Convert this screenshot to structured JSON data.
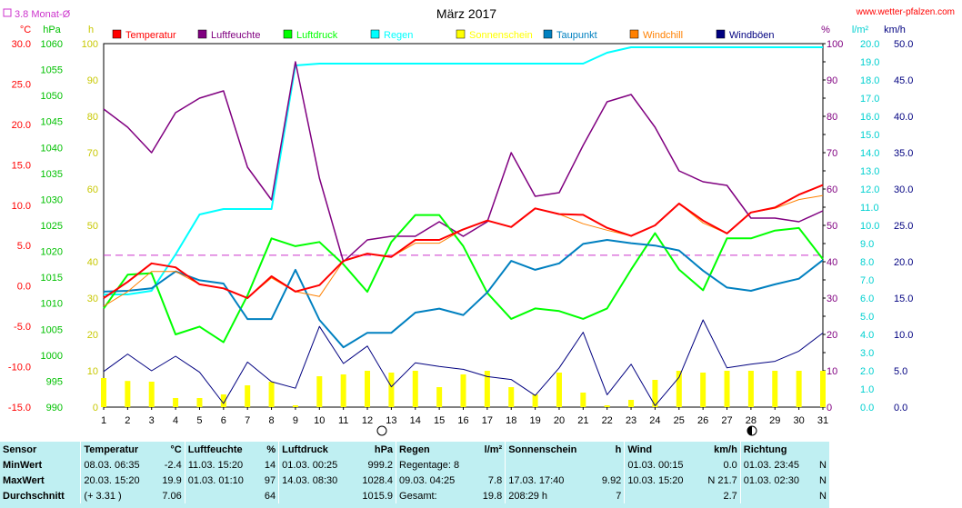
{
  "header": {
    "monat_label": "3.8 Monat-Ø",
    "title": "März 2017",
    "site": "www.wetter-pfalzen.com"
  },
  "colors": {
    "temperatur": "#ff0000",
    "luftfeuchte": "#800080",
    "luftdruck": "#00ff00",
    "regen": "#00ffff",
    "sonnenschein": "#ffff00",
    "taupunkt": "#0080c0",
    "windchill": "#ff8000",
    "windboeen": "#000080",
    "wind": "#000080",
    "monat_avg": "#cc33cc"
  },
  "chart_data": {
    "type": "line",
    "title": "März 2017",
    "x": [
      1,
      2,
      3,
      4,
      5,
      6,
      7,
      8,
      9,
      10,
      11,
      12,
      13,
      14,
      15,
      16,
      17,
      18,
      19,
      20,
      21,
      22,
      23,
      24,
      25,
      26,
      27,
      28,
      29,
      30,
      31
    ],
    "axes": {
      "temp": {
        "unit": "°C",
        "range": [
          -15,
          30
        ],
        "ticks": [
          "30.0",
          "25.0",
          "20.0",
          "15.0",
          "10.0",
          "5.0",
          "0.0",
          "-5.0",
          "-10.0",
          "-15.0"
        ]
      },
      "pressure": {
        "unit": "hPa",
        "range": [
          990,
          1060
        ],
        "ticks": [
          "1060",
          "1055",
          "1050",
          "1045",
          "1040",
          "1035",
          "1030",
          "1025",
          "1020",
          "1015",
          "1010",
          "1005",
          "1000",
          "995",
          "990"
        ]
      },
      "hours": {
        "unit": "h",
        "range": [
          0,
          100
        ],
        "ticks": [
          "100",
          "90",
          "80",
          "70",
          "60",
          "50",
          "40",
          "30",
          "20",
          "10",
          "0"
        ]
      },
      "humidity": {
        "unit": "%",
        "range": [
          0,
          100
        ],
        "ticks": [
          "100",
          "90",
          "80",
          "70",
          "60",
          "50",
          "40",
          "30",
          "20",
          "10",
          "0"
        ]
      },
      "rain": {
        "unit": "l/m²",
        "range": [
          0,
          20
        ],
        "ticks": [
          "20.0",
          "19.0",
          "18.0",
          "17.0",
          "16.0",
          "15.0",
          "14.0",
          "13.0",
          "12.0",
          "11.0",
          "10.0",
          "9.0",
          "8.0",
          "7.0",
          "6.0",
          "5.0",
          "4.0",
          "3.0",
          "2.0",
          "1.0",
          "0.0"
        ]
      },
      "wind": {
        "unit": "km/h",
        "range": [
          0,
          50
        ],
        "ticks": [
          "50.0",
          "45.0",
          "40.0",
          "35.0",
          "30.0",
          "25.0",
          "20.0",
          "15.0",
          "10.0",
          "5.0",
          "0.0"
        ]
      }
    },
    "monat_avg_temp": 3.8,
    "series": [
      {
        "name": "Temperatur",
        "axis": "temp",
        "values": [
          -1.5,
          0.5,
          2.8,
          2.3,
          0.2,
          -0.3,
          -1.5,
          1.2,
          -0.7,
          0.1,
          3.1,
          4.0,
          3.6,
          5.7,
          5.7,
          7.0,
          8.1,
          7.3,
          9.6,
          8.9,
          8.8,
          7.2,
          6.2,
          7.5,
          10.2,
          8.1,
          6.5,
          9.1,
          9.7,
          11.3,
          12.5
        ]
      },
      {
        "name": "Luftfeuchte",
        "axis": "humidity",
        "values": [
          82,
          77,
          70,
          81,
          85,
          87,
          66,
          57,
          95,
          63,
          40,
          46,
          47,
          47,
          51,
          47,
          51,
          70,
          58,
          59,
          72,
          84,
          86,
          77,
          65,
          62,
          61,
          52,
          52,
          51,
          54
        ]
      },
      {
        "name": "Luftdruck",
        "axis": "pressure",
        "values": [
          1009.0,
          1015.5,
          1015.8,
          1004.0,
          1005.5,
          1002.5,
          1011.5,
          1022.5,
          1021.0,
          1021.8,
          1017.5,
          1012.2,
          1021.8,
          1027.0,
          1027.0,
          1021.0,
          1012.0,
          1007.0,
          1009.0,
          1008.5,
          1007.0,
          1009.0,
          1016.5,
          1023.5,
          1016.5,
          1012.5,
          1022.5,
          1022.5,
          1024.0,
          1024.5,
          1018.5
        ]
      },
      {
        "name": "Regen",
        "axis": "rain",
        "values": [
          6.2,
          6.2,
          6.4,
          8.4,
          10.6,
          10.9,
          10.9,
          10.9,
          18.8,
          18.9,
          18.9,
          18.9,
          18.9,
          18.9,
          18.9,
          18.9,
          18.9,
          18.9,
          18.9,
          18.9,
          18.9,
          19.5,
          19.8,
          19.8,
          19.8,
          19.8,
          19.8,
          19.8,
          19.8,
          19.8,
          19.8
        ]
      },
      {
        "name": "Sonnenschein",
        "axis": "hours",
        "values": [
          8.0,
          7.2,
          7.0,
          2.5,
          2.5,
          3.5,
          6.0,
          7.0,
          0.5,
          8.5,
          9.0,
          10.0,
          9.5,
          10.0,
          5.5,
          9.0,
          10.0,
          5.5,
          3.5,
          9.5,
          4.0,
          0.5,
          2.0,
          7.5,
          10.0,
          9.5,
          10.0,
          10.0,
          10.0,
          10.0,
          10.0
        ]
      },
      {
        "name": "Taupunkt",
        "axis": "temp",
        "values": [
          -0.7,
          -0.6,
          -0.3,
          1.8,
          0.7,
          0.3,
          -4.1,
          -4.1,
          2.0,
          -4.2,
          -7.6,
          -5.8,
          -5.8,
          -3.3,
          -2.8,
          -3.6,
          -0.8,
          3.1,
          2.0,
          2.8,
          5.2,
          5.7,
          5.3,
          5.0,
          4.4,
          1.9,
          -0.2,
          -0.6,
          0.2,
          0.9,
          3.2
        ]
      },
      {
        "name": "Windchill",
        "axis": "temp",
        "values": [
          -2.5,
          -0.7,
          1.8,
          1.8,
          0.2,
          -0.3,
          -1.5,
          1.0,
          -0.7,
          -1.3,
          3.1,
          4.0,
          3.6,
          5.3,
          5.3,
          7.0,
          8.1,
          7.3,
          9.6,
          8.9,
          7.7,
          6.9,
          6.2,
          7.5,
          10.2,
          7.8,
          6.5,
          9.1,
          9.6,
          10.7,
          11.2
        ]
      },
      {
        "name": "Windböen",
        "axis": "wind",
        "values": [
          4.9,
          7.3,
          5.0,
          7.0,
          4.8,
          0.5,
          6.2,
          3.5,
          2.6,
          11.1,
          6.0,
          8.4,
          2.8,
          6.1,
          5.6,
          5.2,
          4.2,
          3.8,
          1.6,
          5.4,
          10.3,
          1.7,
          5.9,
          0.2,
          4.1,
          12.0,
          5.4,
          5.9,
          6.3,
          7.7,
          10.2
        ]
      }
    ],
    "legend": [
      "Temperatur",
      "Luftfeuchte",
      "Luftdruck",
      "Regen",
      "Sonnenschein",
      "Taupunkt",
      "Windchill",
      "Windböen"
    ],
    "grid": false,
    "legend_position": "top"
  },
  "stats": {
    "columns": [
      {
        "title": "Sensor",
        "unit": ""
      },
      {
        "title": "Temperatur",
        "unit": "°C"
      },
      {
        "title": "Luftfeuchte",
        "unit": "%"
      },
      {
        "title": "Luftdruck",
        "unit": "hPa"
      },
      {
        "title": "Regen",
        "unit": "l/m²"
      },
      {
        "title": "Sonnenschein",
        "unit": "h"
      },
      {
        "title": "Wind",
        "unit": "km/h"
      },
      {
        "title": "Richtung",
        "unit": ""
      }
    ],
    "rows": [
      {
        "label": "MinWert",
        "temp": [
          "08.03.  06:35",
          "-2.4"
        ],
        "hum": [
          "11.03.  15:20",
          "14"
        ],
        "press": [
          "01.03.  00:25",
          "999.2"
        ],
        "rain": [
          "Regentage: 8",
          ""
        ],
        "sun": [
          "",
          ""
        ],
        "wind": [
          "01.03.  00:15",
          "0.0"
        ],
        "dir": [
          "01.03.  23:45",
          "N"
        ]
      },
      {
        "label": "MaxWert",
        "temp": [
          "20.03.  15:20",
          "19.9"
        ],
        "hum": [
          "01.03.  01:10",
          "97"
        ],
        "press": [
          "14.03.  08:30",
          "1028.4"
        ],
        "rain": [
          "09.03.  04:25",
          "7.8"
        ],
        "sun": [
          "17.03.  17:40",
          "9.92"
        ],
        "wind": [
          "10.03.  15:20",
          "N  21.7"
        ],
        "dir": [
          "01.03.  02:30",
          "N"
        ]
      },
      {
        "label": "Durchschnitt",
        "temp": [
          "(+ 3.31 )",
          "7.06"
        ],
        "hum": [
          "",
          "64"
        ],
        "press": [
          "",
          "1015.9"
        ],
        "rain": [
          "Gesamt:",
          "19.8"
        ],
        "sun": [
          "208:29 h",
          "7"
        ],
        "wind": [
          "",
          "2.7"
        ],
        "dir": [
          "",
          "N"
        ]
      }
    ]
  }
}
